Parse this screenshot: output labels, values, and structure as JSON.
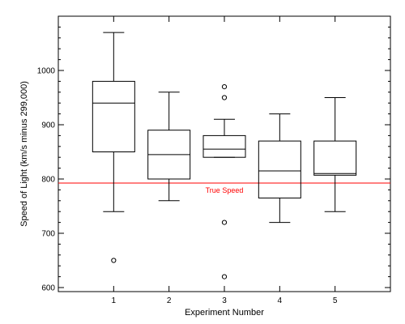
{
  "chart_data": {
    "type": "box",
    "xlabel": "Experiment Number",
    "ylabel": "Speed of Light (km/s minus 299,000)",
    "ylim": [
      600,
      1100
    ],
    "y_ticks": [
      600,
      700,
      800,
      900,
      1000
    ],
    "x_ticks": [
      "1",
      "2",
      "3",
      "4",
      "5"
    ],
    "xlim": [
      0,
      6
    ],
    "grid": false,
    "boxes": [
      {
        "x": 1,
        "label": "1",
        "whisker_low": 740,
        "q1": 850,
        "median": 940,
        "q3": 980,
        "whisker_high": 1070,
        "outliers": [
          650
        ]
      },
      {
        "x": 2,
        "label": "2",
        "whisker_low": 760,
        "q1": 800,
        "median": 845,
        "q3": 890,
        "whisker_high": 960,
        "outliers": []
      },
      {
        "x": 3,
        "label": "3",
        "whisker_low": 840,
        "q1": 840,
        "median": 855,
        "q3": 880,
        "whisker_high": 910,
        "outliers": [
          620,
          720,
          950,
          970
        ]
      },
      {
        "x": 4,
        "label": "4",
        "whisker_low": 720,
        "q1": 765,
        "median": 815,
        "q3": 870,
        "whisker_high": 920,
        "outliers": []
      },
      {
        "x": 5,
        "label": "5",
        "whisker_low": 740,
        "q1": 807,
        "median": 810,
        "q3": 870,
        "whisker_high": 950,
        "outliers": []
      }
    ],
    "reference_line": {
      "y": 792.458,
      "label": "True Speed",
      "color": "#ff0000"
    }
  }
}
